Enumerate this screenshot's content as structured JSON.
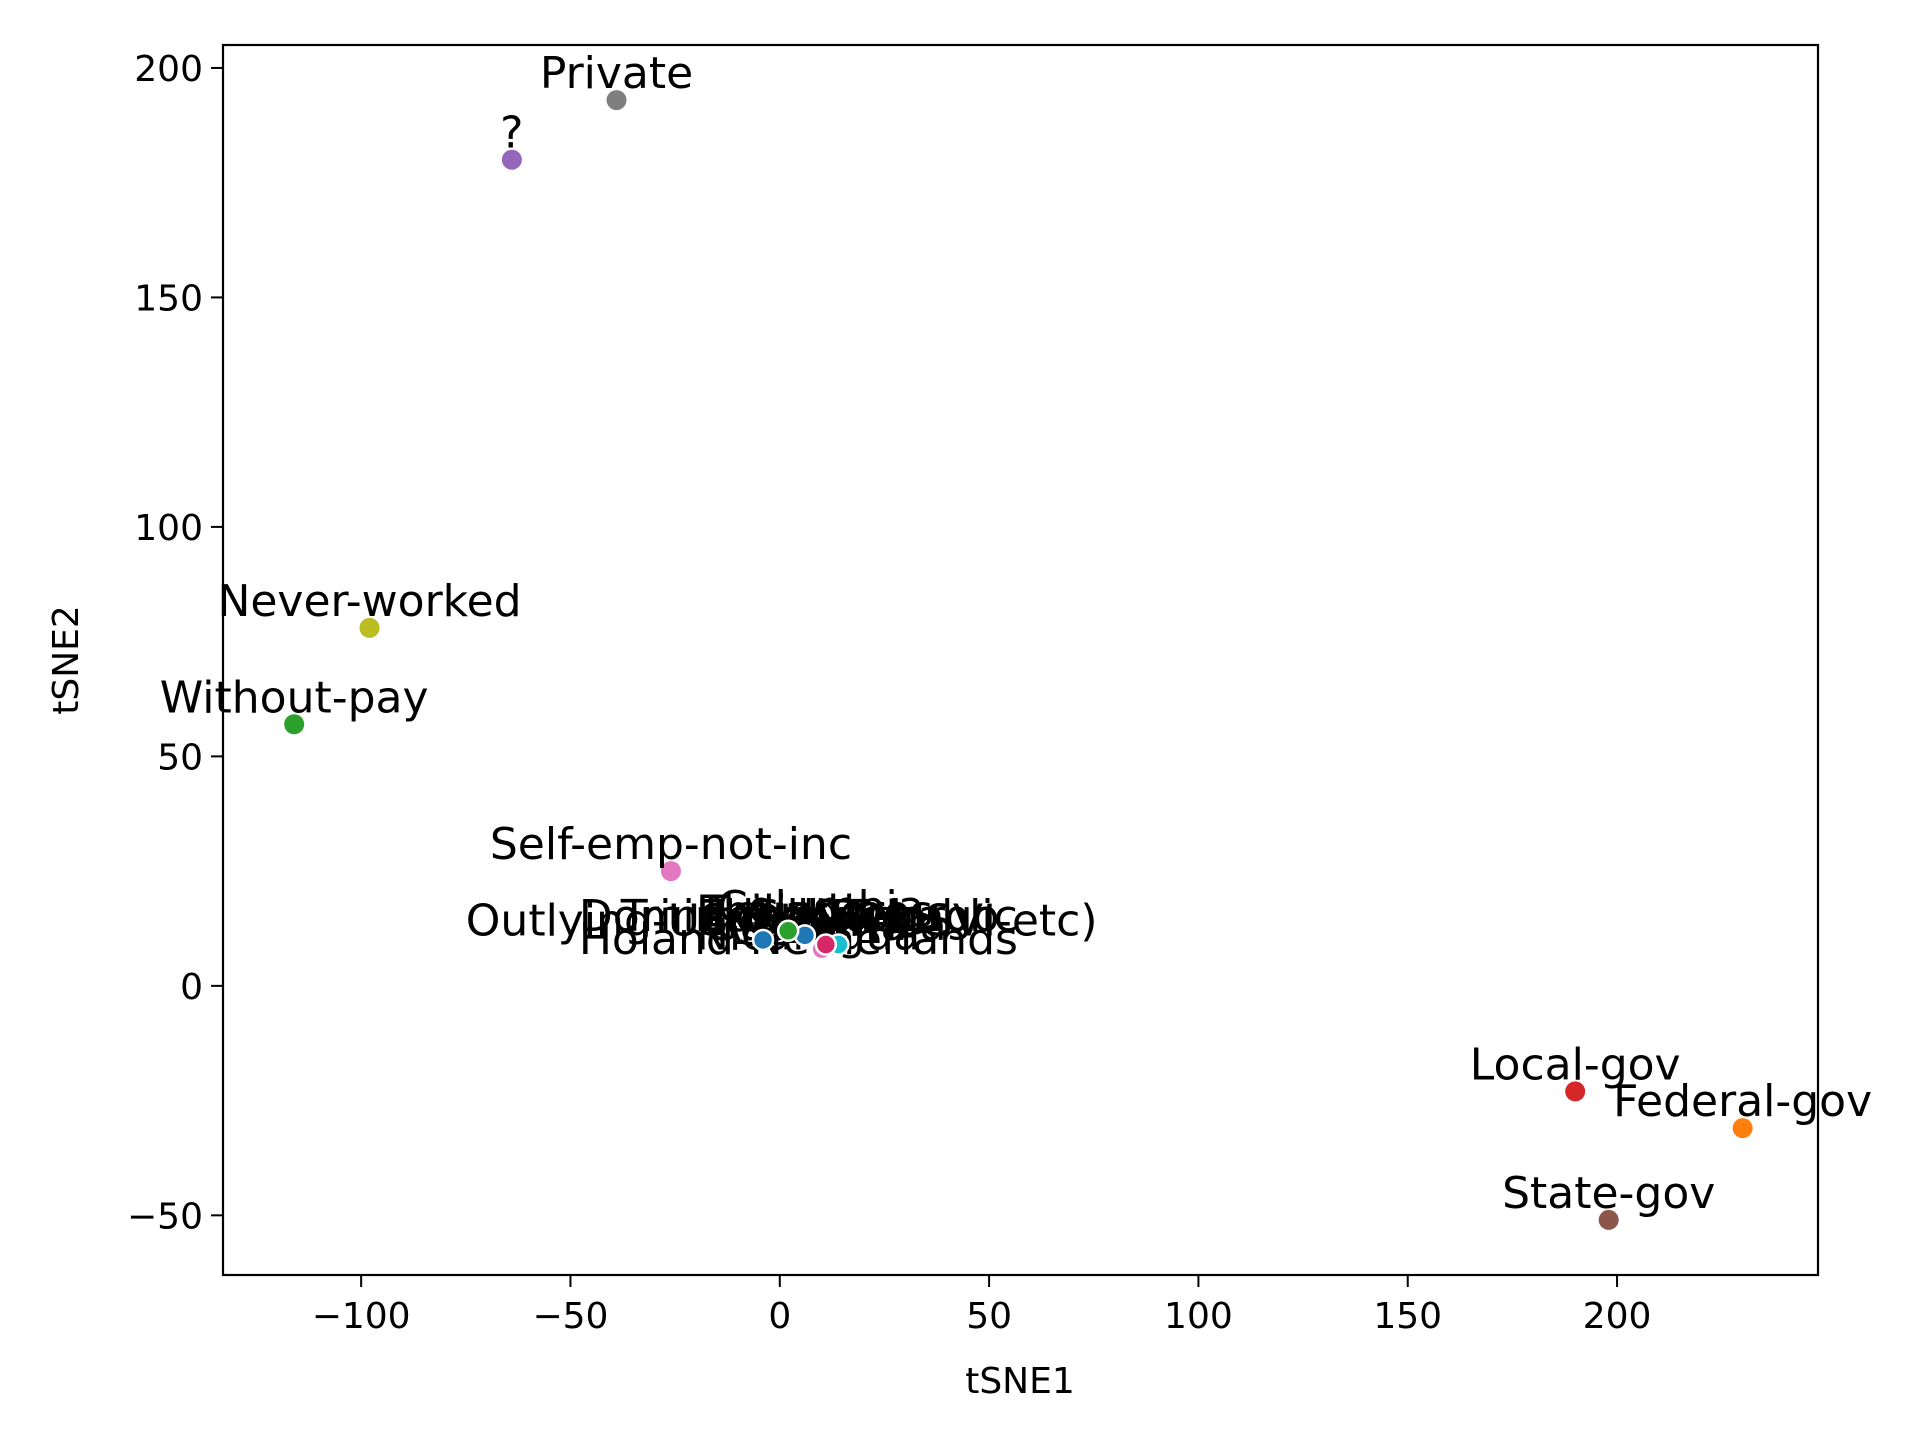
{
  "chart_data": {
    "type": "scatter",
    "title": "",
    "xlabel": "tSNE1",
    "ylabel": "tSNE2",
    "xlim": [
      -133,
      248
    ],
    "ylim": [
      -63,
      205
    ],
    "xticks": [
      -100,
      -50,
      0,
      50,
      100,
      150,
      200
    ],
    "yticks": [
      -50,
      0,
      50,
      100,
      150,
      200
    ],
    "xtick_labels": [
      "−100",
      "−50",
      "0",
      "50",
      "100",
      "150",
      "200"
    ],
    "ytick_labels": [
      "−50",
      "0",
      "50",
      "100",
      "150",
      "200"
    ],
    "grid": false,
    "legend": "none",
    "points": [
      {
        "label": "Private",
        "x": -39,
        "y": 193,
        "color": "#7f7f7f"
      },
      {
        "label": "?",
        "x": -64,
        "y": 180,
        "color": "#9467bd"
      },
      {
        "label": "Never-worked",
        "x": -98,
        "y": 78,
        "color": "#bcbd22"
      },
      {
        "label": "Without-pay",
        "x": -116,
        "y": 57,
        "color": "#2ca02c"
      },
      {
        "label": "Self-emp-not-inc",
        "x": -26,
        "y": 25,
        "color": "#e377c2"
      },
      {
        "label": "Local-gov",
        "x": 190,
        "y": -23,
        "color": "#d62728"
      },
      {
        "label": "Federal-gov",
        "x": 230,
        "y": -31,
        "color": "#ff7f0e"
      },
      {
        "label": "State-gov",
        "x": 198,
        "y": -51,
        "color": "#8c564b"
      }
    ],
    "cluster_points": [
      {
        "x": -4,
        "y": 10,
        "color": "#1f77b4"
      },
      {
        "x": 14,
        "y": 9,
        "color": "#17becf"
      },
      {
        "x": 10,
        "y": 8,
        "color": "#e377c2"
      },
      {
        "x": 11,
        "y": 9,
        "color": "#d62768"
      },
      {
        "x": 6,
        "y": 11,
        "color": "#1f77b4"
      },
      {
        "x": 2,
        "y": 12,
        "color": "#2ca02c"
      }
    ],
    "cluster_labels": [
      {
        "text": "Outlying-US(Guam-USVI-etc)",
        "x": -75,
        "y": 14
      },
      {
        "text": "Holand-Netherlands",
        "x": -48,
        "y": 10
      },
      {
        "text": "Dominican-Republic",
        "x": -48,
        "y": 15
      },
      {
        "text": "Trinadad&Tobago",
        "x": -38,
        "y": 15
      },
      {
        "text": "Philippines",
        "x": -20,
        "y": 16
      },
      {
        "text": "Columbia",
        "x": -15,
        "y": 17
      },
      {
        "text": "Guatemala",
        "x": -18,
        "y": 13
      },
      {
        "text": "Nicaragua",
        "x": -20,
        "y": 11
      },
      {
        "text": "El-Salvador",
        "x": -20,
        "y": 15
      },
      {
        "text": "South",
        "x": -10,
        "y": 12
      },
      {
        "text": "Ecuador",
        "x": -18,
        "y": 16
      },
      {
        "text": "Haiti",
        "x": -5,
        "y": 14
      }
    ]
  }
}
